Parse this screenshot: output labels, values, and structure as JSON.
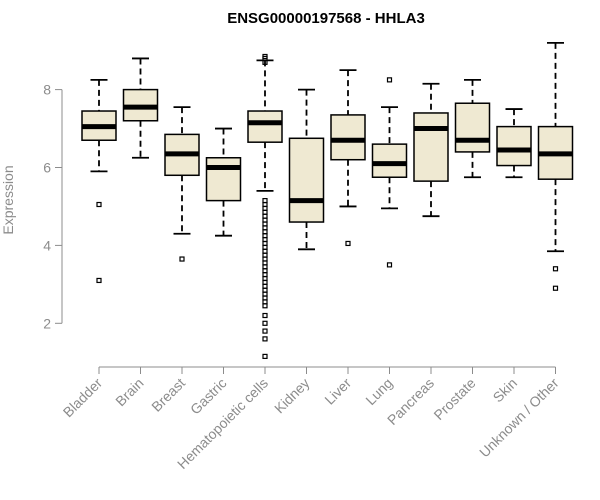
{
  "chart_data": {
    "type": "boxplot",
    "title": "ENSG00000197568 - HHLA3",
    "xlabel": "",
    "ylabel": "Expression",
    "ylim": [
      1,
      9.3
    ],
    "yticks": [
      2,
      4,
      6,
      8
    ],
    "categories": [
      "Bladder",
      "Brain",
      "Breast",
      "Gastric",
      "Hematopoietic cells",
      "Kidney",
      "Liver",
      "Lung",
      "Pancreas",
      "Prostate",
      "Skin",
      "Unknown / Other"
    ],
    "boxes": [
      {
        "name": "Bladder",
        "whislo": 5.9,
        "q1": 6.7,
        "med": 7.05,
        "q3": 7.45,
        "whishi": 8.25,
        "fliers": [
          5.05,
          3.1
        ]
      },
      {
        "name": "Brain",
        "whislo": 6.25,
        "q1": 7.2,
        "med": 7.55,
        "q3": 8.0,
        "whishi": 8.8,
        "fliers": []
      },
      {
        "name": "Breast",
        "whislo": 4.3,
        "q1": 5.8,
        "med": 6.35,
        "q3": 6.85,
        "whishi": 7.55,
        "fliers": [
          3.65
        ]
      },
      {
        "name": "Gastric",
        "whislo": 4.25,
        "q1": 5.15,
        "med": 6.0,
        "q3": 6.25,
        "whishi": 7.0,
        "fliers": []
      },
      {
        "name": "Hematopoietic cells",
        "whislo": 5.4,
        "q1": 6.65,
        "med": 7.15,
        "q3": 7.45,
        "whishi": 8.75,
        "fliers": [
          8.85,
          8.8,
          8.7,
          5.15,
          5.05,
          4.95,
          4.85,
          4.75,
          4.65,
          4.55,
          4.45,
          4.35,
          4.25,
          4.15,
          4.05,
          3.95,
          3.85,
          3.75,
          3.65,
          3.55,
          3.45,
          3.35,
          3.25,
          3.15,
          3.05,
          2.95,
          2.85,
          2.75,
          2.65,
          2.55,
          2.45,
          2.2,
          2.0,
          1.8,
          1.6,
          1.15
        ]
      },
      {
        "name": "Kidney",
        "whislo": 3.9,
        "q1": 4.6,
        "med": 5.15,
        "q3": 6.75,
        "whishi": 8.0,
        "fliers": []
      },
      {
        "name": "Liver",
        "whislo": 5.0,
        "q1": 6.2,
        "med": 6.7,
        "q3": 7.35,
        "whishi": 8.5,
        "fliers": [
          4.05
        ]
      },
      {
        "name": "Lung",
        "whislo": 4.95,
        "q1": 5.75,
        "med": 6.1,
        "q3": 6.6,
        "whishi": 7.55,
        "fliers": [
          8.25,
          3.5
        ]
      },
      {
        "name": "Pancreas",
        "whislo": 4.75,
        "q1": 5.65,
        "med": 7.0,
        "q3": 7.4,
        "whishi": 8.15,
        "fliers": []
      },
      {
        "name": "Prostate",
        "whislo": 5.75,
        "q1": 6.4,
        "med": 6.7,
        "q3": 7.65,
        "whishi": 8.25,
        "fliers": []
      },
      {
        "name": "Skin",
        "whislo": 5.75,
        "q1": 6.05,
        "med": 6.45,
        "q3": 7.05,
        "whishi": 7.5,
        "fliers": []
      },
      {
        "name": "Unknown / Other",
        "whislo": 3.85,
        "q1": 5.7,
        "med": 6.35,
        "q3": 7.05,
        "whishi": 9.2,
        "fliers": [
          3.4,
          2.9
        ]
      }
    ]
  },
  "colors": {
    "box_fill": "#efe9d2",
    "axis_text": "#8c8c8c"
  }
}
